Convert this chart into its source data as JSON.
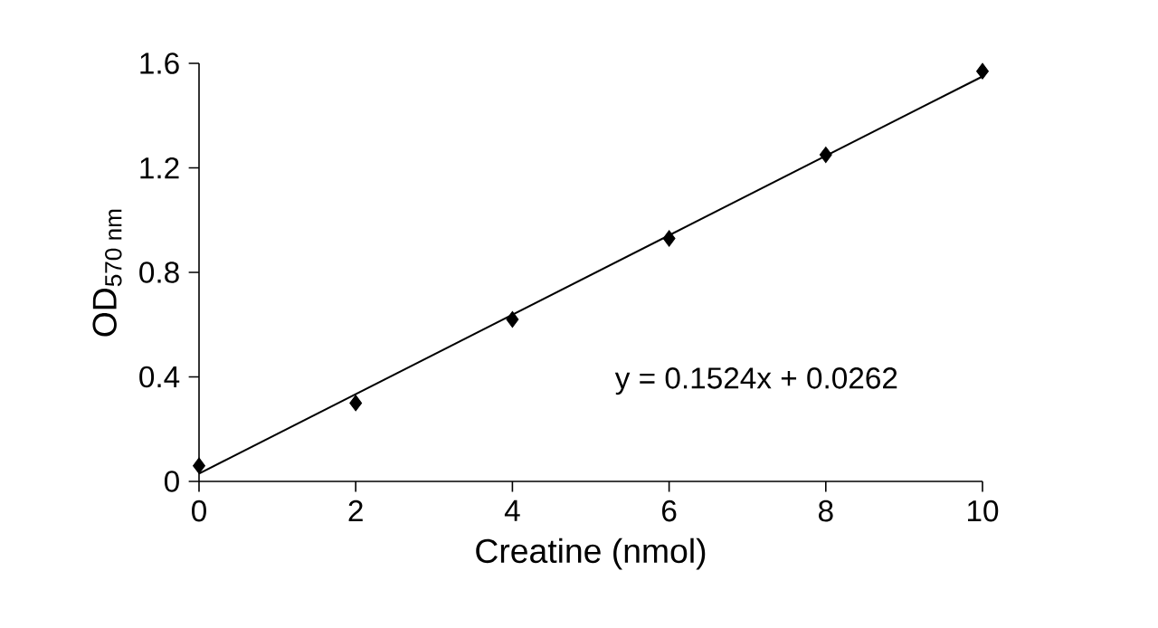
{
  "chart_data": {
    "type": "scatter",
    "xlabel": "Creatine (nmol)",
    "ylabel": "OD$_{570 nm}$",
    "xlim": [
      0,
      10
    ],
    "ylim": [
      0,
      1.6
    ],
    "xticks": [
      0,
      2,
      4,
      6,
      8,
      10
    ],
    "yticks": [
      0,
      0.4,
      0.8,
      1.2,
      1.6
    ],
    "series": [
      {
        "marker": "diamond",
        "color": "#000000",
        "x": [
          0,
          2,
          4,
          6,
          8,
          10
        ],
        "values": [
          0.06,
          0.3,
          0.62,
          0.93,
          1.25,
          1.57
        ]
      },
      {
        "type": "line",
        "marker": "none",
        "line_style": "solid",
        "color": "#000000",
        "x": [
          0,
          10
        ],
        "values": [
          0.03,
          1.55
        ]
      }
    ],
    "annotations": [
      "y = 0.1524x + 0.0262"
    ],
    "grid": false
  }
}
